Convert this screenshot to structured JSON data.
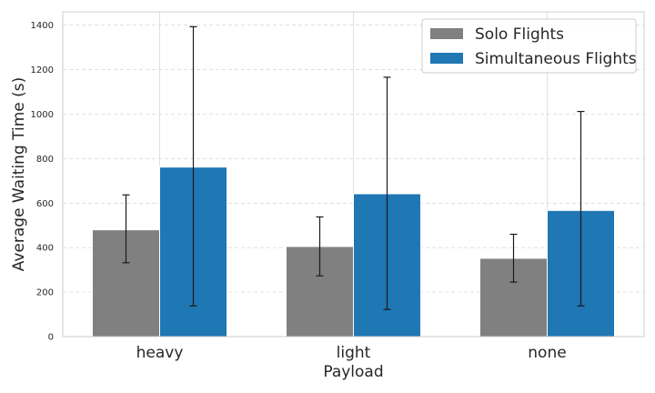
{
  "chart_data": {
    "type": "bar",
    "title": "",
    "xlabel": "Payload",
    "ylabel": "Average Waiting Time (s)",
    "categories": [
      "heavy",
      "light",
      "none"
    ],
    "ylim": [
      0,
      1460
    ],
    "yticks": [
      0,
      200,
      400,
      600,
      800,
      1000,
      1200,
      1400
    ],
    "grid": true,
    "legend_position": "top-right",
    "series": [
      {
        "name": "Solo Flights",
        "color": "#808080",
        "values": [
          480,
          405,
          352
        ],
        "error_low": [
          332,
          273,
          245
        ],
        "error_high": [
          637,
          538,
          460
        ]
      },
      {
        "name": "Simultaneous Flights",
        "color": "#1f77b4",
        "values": [
          762,
          642,
          567
        ],
        "error_low": [
          138,
          122,
          138
        ],
        "error_high": [
          1393,
          1166,
          1012
        ]
      }
    ]
  }
}
